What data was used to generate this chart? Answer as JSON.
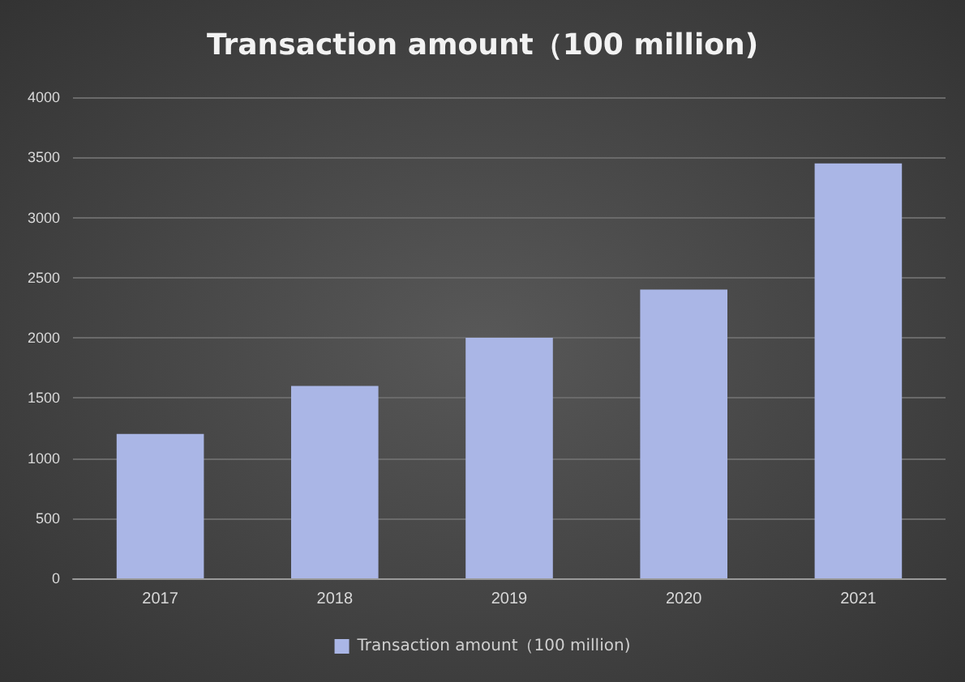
{
  "chart_data": {
    "type": "bar",
    "title": "Transaction amount（100 million)",
    "categories": [
      "2017",
      "2018",
      "2019",
      "2020",
      "2021"
    ],
    "series": [
      {
        "name": "Transaction amount（100 million)",
        "color": "#aab6e6",
        "values": [
          1200,
          1600,
          2000,
          2400,
          3450
        ]
      }
    ],
    "ylim": [
      0,
      4000
    ],
    "yticks": [
      0,
      500,
      1000,
      1500,
      2000,
      2500,
      3000,
      3500,
      4000
    ],
    "grid": "y",
    "legend": "bottom"
  }
}
